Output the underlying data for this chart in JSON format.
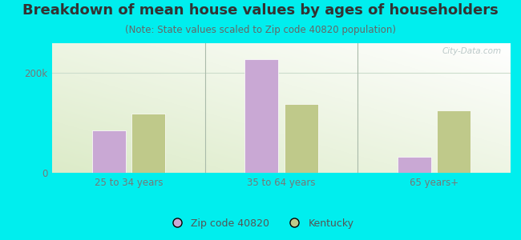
{
  "title": "Breakdown of mean house values by ages of householders",
  "subtitle": "(Note: State values scaled to Zip code 40820 population)",
  "categories": [
    "25 to 34 years",
    "35 to 64 years",
    "65 years+"
  ],
  "zip_values": [
    85000,
    228000,
    32000
  ],
  "state_values": [
    118000,
    138000,
    125000
  ],
  "ylim": [
    0,
    260000
  ],
  "yticks": [
    0,
    200000
  ],
  "ytick_labels": [
    "0",
    "200k"
  ],
  "zip_color": "#c9a8d4",
  "state_color": "#bfc98a",
  "background_outer": "#00eeee",
  "bar_edge_color": "#ffffff",
  "legend_zip_label": "Zip code 40820",
  "legend_state_label": "Kentucky",
  "title_fontsize": 13,
  "subtitle_fontsize": 8.5,
  "tick_fontsize": 8.5,
  "legend_fontsize": 9,
  "separator_color": "#aabbaa",
  "gridline_color": "#ccddcc",
  "tick_color": "#777777"
}
